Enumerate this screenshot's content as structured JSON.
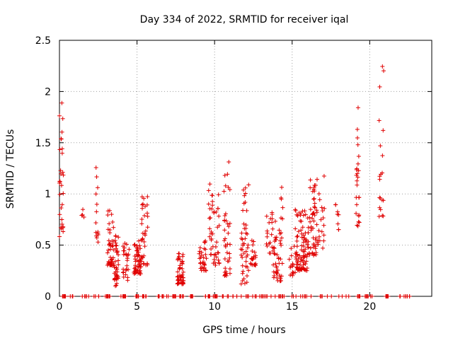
{
  "chart_data": {
    "type": "scatter",
    "title": "Day 334 of 2022, SRMTID for receiver iqal",
    "xlabel": "GPS time / hours",
    "ylabel": "SRMTID / TECUs",
    "xlim": [
      0,
      24
    ],
    "ylim": [
      0,
      2.5
    ],
    "xticks": [
      0,
      5,
      10,
      15,
      20
    ],
    "xtick_labels": [
      "0",
      "5",
      "10",
      "15",
      "20"
    ],
    "yticks": [
      0,
      0.5,
      1,
      1.5,
      2,
      2.5
    ],
    "ytick_labels": [
      "0",
      "0.5",
      "1",
      "1.5",
      "2",
      "2.5"
    ],
    "grid": true,
    "marker": "+",
    "series_color": "#e00000",
    "clusters": [
      {
        "x": [
          0.0,
          0.25
        ],
        "y": [
          0.58,
          1.9
        ],
        "n": 30
      },
      {
        "x": [
          1.4,
          1.6
        ],
        "y": [
          0.76,
          0.85
        ],
        "n": 4
      },
      {
        "x": [
          2.3,
          2.5
        ],
        "y": [
          0.5,
          1.33
        ],
        "n": 14
      },
      {
        "x": [
          3.1,
          3.5
        ],
        "y": [
          0.3,
          0.9
        ],
        "n": 45
      },
      {
        "x": [
          3.5,
          3.8
        ],
        "y": [
          0.1,
          0.6
        ],
        "n": 40
      },
      {
        "x": [
          4.1,
          4.5
        ],
        "y": [
          0.15,
          0.52
        ],
        "n": 25
      },
      {
        "x": [
          4.8,
          5.3
        ],
        "y": [
          0.22,
          0.55
        ],
        "n": 55
      },
      {
        "x": [
          5.3,
          5.7
        ],
        "y": [
          0.3,
          0.98
        ],
        "n": 30
      },
      {
        "x": [
          7.6,
          8.0
        ],
        "y": [
          0.12,
          0.42
        ],
        "n": 50
      },
      {
        "x": [
          9.0,
          9.5
        ],
        "y": [
          0.25,
          0.55
        ],
        "n": 30
      },
      {
        "x": [
          9.6,
          10.3
        ],
        "y": [
          0.3,
          1.1
        ],
        "n": 45
      },
      {
        "x": [
          10.6,
          11.0
        ],
        "y": [
          0.2,
          1.34
        ],
        "n": 40
      },
      {
        "x": [
          11.7,
          12.2
        ],
        "y": [
          0.12,
          1.09
        ],
        "n": 45
      },
      {
        "x": [
          12.3,
          12.7
        ],
        "y": [
          0.3,
          0.55
        ],
        "n": 20
      },
      {
        "x": [
          13.3,
          13.7
        ],
        "y": [
          0.42,
          0.8
        ],
        "n": 15
      },
      {
        "x": [
          13.7,
          14.4
        ],
        "y": [
          0.15,
          1.07
        ],
        "n": 55
      },
      {
        "x": [
          14.8,
          15.2
        ],
        "y": [
          0.2,
          0.5
        ],
        "n": 15
      },
      {
        "x": [
          15.2,
          16.0
        ],
        "y": [
          0.25,
          0.85
        ],
        "n": 90
      },
      {
        "x": [
          16.0,
          16.6
        ],
        "y": [
          0.4,
          1.15
        ],
        "n": 55
      },
      {
        "x": [
          16.6,
          17.1
        ],
        "y": [
          0.45,
          1.18
        ],
        "n": 20
      },
      {
        "x": [
          17.8,
          18.0
        ],
        "y": [
          0.65,
          0.98
        ],
        "n": 8
      },
      {
        "x": [
          19.1,
          19.35
        ],
        "y": [
          0.68,
          1.86
        ],
        "n": 25
      },
      {
        "x": [
          20.6,
          20.9
        ],
        "y": [
          0.78,
          2.3
        ],
        "n": 20
      }
    ],
    "zero_points": {
      "x_ranges": [
        [
          0.1,
          0.9
        ],
        [
          1.3,
          2.6
        ],
        [
          2.9,
          3.3
        ],
        [
          3.9,
          4.5
        ],
        [
          4.9,
          5.1
        ],
        [
          5.3,
          5.6
        ],
        [
          6.3,
          7.1
        ],
        [
          7.3,
          7.5
        ],
        [
          7.6,
          8.0
        ],
        [
          8.4,
          8.6
        ],
        [
          9.4,
          9.7
        ],
        [
          9.9,
          10.2
        ],
        [
          10.4,
          11.5
        ],
        [
          11.7,
          12.7
        ],
        [
          12.9,
          13.4
        ],
        [
          13.6,
          14.5
        ],
        [
          14.8,
          16.3
        ],
        [
          16.8,
          18.7
        ],
        [
          19.2,
          19.4
        ],
        [
          19.6,
          20.2
        ],
        [
          21.0,
          21.2
        ],
        [
          21.8,
          22.6
        ]
      ],
      "y": 0,
      "n": 180
    }
  }
}
